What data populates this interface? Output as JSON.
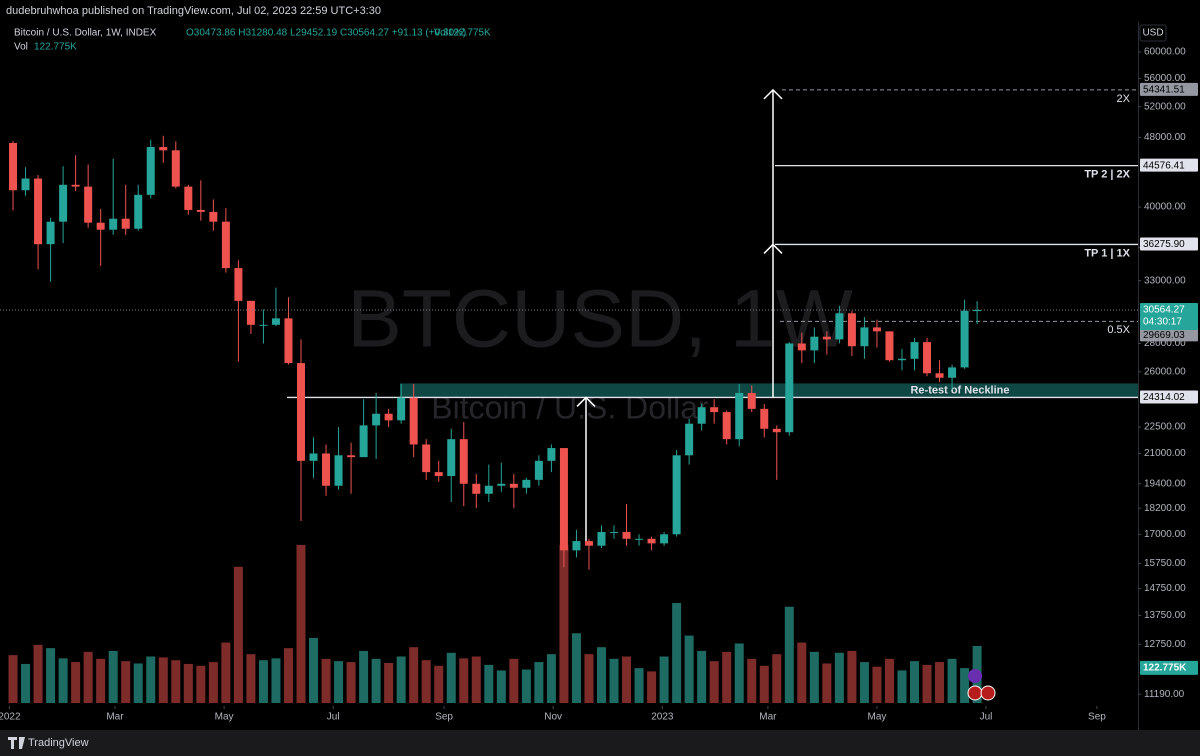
{
  "header": {
    "publisher": "dudebruhwhoa published on TradingView.com, Jul 02, 2023 22:59 UTC+3:30",
    "brand": "TradingView"
  },
  "chart_data": {
    "type": "candlestick",
    "title": "Bitcoin / U.S. Dollar, 1W, INDEX",
    "ohlc_text": "O30473.86 H31280.48 L29452.19 C30564.27 +91.13 (+0.30%)",
    "volume_text": "Vol122.775K",
    "watermark": "BTCUSD, 1W",
    "watermark_sub": "Bitcoin / U.S. Dollar",
    "currency": "USD",
    "countdown": "04:30:17",
    "log": true,
    "grid": false,
    "up_color": "#26a69a",
    "down_color": "#ef5350",
    "volume_up_color": "#1d6b63",
    "volume_down_color": "#7e2c2a",
    "categories": [
      null,
      null,
      null,
      null,
      null,
      null,
      null,
      null,
      null,
      null,
      null,
      null,
      null,
      null,
      null,
      null,
      null,
      null,
      null,
      null,
      null,
      null,
      null,
      null,
      null,
      null,
      null,
      null,
      null,
      null,
      null,
      null,
      null,
      null,
      null,
      null,
      null,
      null,
      null,
      null,
      null,
      null,
      null,
      null,
      null,
      null,
      null,
      null,
      null,
      null,
      null,
      null,
      null,
      null,
      null,
      null,
      null,
      null,
      null,
      null,
      null,
      null,
      null,
      null,
      null,
      null,
      null,
      null,
      null,
      null,
      null,
      null,
      null,
      null,
      null,
      null,
      null,
      null
    ],
    "open": [
      47300,
      41800,
      43100,
      36300,
      38500,
      42400,
      42200,
      38400,
      37700,
      38800,
      37800,
      41300,
      46800,
      46400,
      42200,
      39700,
      39500,
      38500,
      34100,
      31300,
      29400,
      29400,
      29900,
      26600,
      20600,
      21000,
      19300,
      20900,
      20800,
      22600,
      23300,
      22900,
      24300,
      21500,
      20000,
      19800,
      21800,
      19400,
      18900,
      19300,
      19400,
      19200,
      19600,
      20600,
      21300,
      16300,
      16700,
      16500,
      17100,
      17100,
      16800,
      16800,
      16600,
      17000,
      20900,
      22700,
      23700,
      23400,
      21800,
      24600,
      23600,
      22400,
      22200,
      28000,
      27500,
      28500,
      28300,
      30300,
      27800,
      29200,
      28900,
      26800,
      26900,
      28100,
      25900,
      25600,
      26300,
      30473.86
    ],
    "high": [
      47550,
      44400,
      43500,
      38900,
      44500,
      45800,
      44700,
      39800,
      45400,
      42400,
      42400,
      47700,
      48200,
      47500,
      42400,
      42900,
      40800,
      39900,
      34800,
      31300,
      30600,
      32400,
      31600,
      28300,
      21900,
      21500,
      22500,
      21600,
      24200,
      24600,
      23600,
      25200,
      25200,
      21800,
      20600,
      22400,
      22800,
      19900,
      20400,
      20500,
      19900,
      19700,
      20900,
      21500,
      21300,
      17200,
      16800,
      17400,
      17400,
      18400,
      17000,
      16900,
      17100,
      21200,
      23000,
      23900,
      24200,
      23500,
      25200,
      25100,
      23900,
      22600,
      28100,
      28800,
      29200,
      28900,
      30900,
      30500,
      30000,
      29800,
      28900,
      27600,
      28400,
      28400,
      26800,
      26500,
      31400,
      31280.48
    ],
    "low": [
      39650,
      41200,
      34000,
      32900,
      36400,
      41700,
      37900,
      34300,
      37200,
      37200,
      37600,
      40900,
      44900,
      42000,
      39200,
      38600,
      37600,
      33700,
      26700,
      28700,
      28000,
      29300,
      26500,
      17600,
      19700,
      18800,
      19100,
      18900,
      20800,
      20700,
      22500,
      22700,
      20800,
      19600,
      19500,
      18500,
      18300,
      18200,
      18500,
      19000,
      18200,
      18900,
      19300,
      20000,
      15600,
      16000,
      15500,
      16400,
      16800,
      16500,
      16500,
      16300,
      16500,
      16900,
      20400,
      22300,
      22700,
      21500,
      21400,
      23400,
      21900,
      19600,
      22000,
      26600,
      26600,
      27200,
      28000,
      27100,
      26900,
      27700,
      26700,
      26100,
      26100,
      25700,
      25300,
      24800,
      26200,
      29452.19
    ],
    "close": [
      41800,
      43100,
      36300,
      38500,
      42400,
      42200,
      38400,
      37700,
      38800,
      37800,
      41300,
      46800,
      46400,
      42200,
      39700,
      39500,
      38500,
      34100,
      31300,
      29400,
      29400,
      29900,
      26600,
      20600,
      21000,
      19300,
      20900,
      20800,
      22600,
      23300,
      22900,
      24300,
      21500,
      20000,
      19800,
      21800,
      19400,
      18900,
      19300,
      19400,
      19200,
      19600,
      20600,
      21300,
      16300,
      16700,
      16500,
      17100,
      17100,
      16800,
      16800,
      16600,
      17000,
      20900,
      22700,
      23700,
      23400,
      21800,
      24600,
      23600,
      22400,
      22200,
      28000,
      27500,
      28500,
      28300,
      30300,
      27800,
      29200,
      28900,
      26800,
      26900,
      28100,
      25900,
      25600,
      26300,
      30500,
      30564.27
    ],
    "volume": {
      "name": "Vol",
      "last_label": "122.775K",
      "values": [
        103,
        84,
        125,
        118,
        96,
        88,
        110,
        95,
        112,
        90,
        85,
        100,
        98,
        92,
        84,
        80,
        88,
        130,
        293,
        105,
        92,
        96,
        118,
        340,
        140,
        95,
        90,
        88,
        112,
        95,
        86,
        100,
        120,
        92,
        80,
        108,
        96,
        100,
        82,
        70,
        95,
        72,
        88,
        105,
        340,
        150,
        105,
        120,
        95,
        100,
        75,
        68,
        100,
        215,
        145,
        112,
        90,
        110,
        128,
        95,
        80,
        105,
        207,
        130,
        110,
        85,
        108,
        112,
        88,
        78,
        95,
        70,
        90,
        82,
        88,
        95,
        75,
        122.775
      ]
    },
    "xlim": [
      -1.04,
      89.85
    ],
    "xticks": [
      {
        "value": -0.29,
        "label": "2022"
      },
      {
        "value": 8.14,
        "label": "Mar"
      },
      {
        "value": 16.86,
        "label": "May"
      },
      {
        "value": 25.57,
        "label": "Jul"
      },
      {
        "value": 34.43,
        "label": "Sep"
      },
      {
        "value": 43.14,
        "label": "Nov"
      },
      {
        "value": 51.86,
        "label": "2023"
      },
      {
        "value": 60.29,
        "label": "Mar"
      },
      {
        "value": 69,
        "label": "May"
      },
      {
        "value": 77.71,
        "label": "Jul"
      },
      {
        "value": 86.57,
        "label": "Sep"
      }
    ],
    "ylim": [
      10850,
      64900
    ],
    "yticks": [
      {
        "value": 60000,
        "label": "60000.00"
      },
      {
        "value": 56000,
        "label": "56000.00"
      },
      {
        "value": 52000,
        "label": "52000.00"
      },
      {
        "value": 48000,
        "label": "48000.00"
      },
      {
        "value": 40000,
        "label": "40000.00"
      },
      {
        "value": 36000,
        "label": "36000.00"
      },
      {
        "value": 33000,
        "label": "33000.00"
      },
      {
        "value": 28000,
        "label": "28000.00"
      },
      {
        "value": 26000,
        "label": "26000.00"
      },
      {
        "value": 22500,
        "label": "22500.00"
      },
      {
        "value": 21000,
        "label": "21000.00"
      },
      {
        "value": 19400,
        "label": "19400.00"
      },
      {
        "value": 18200,
        "label": "18200.00"
      },
      {
        "value": 17000,
        "label": "17000.00"
      },
      {
        "value": 15750,
        "label": "15750.00"
      },
      {
        "value": 14750,
        "label": "14750.00"
      },
      {
        "value": 13750,
        "label": "13750.00"
      },
      {
        "value": 12750,
        "label": "12750.00"
      },
      {
        "value": 11190,
        "label": "11190.00"
      }
    ],
    "levels": [
      {
        "price": 54341.51,
        "text": "2X",
        "dashed": true
      },
      {
        "price": 44576.41,
        "text": "TP 2 | 2X",
        "dashed": false
      },
      {
        "price": {
          "value": 36275.9,
          "label": "36275.90"
        },
        "text": "TP 1 | 1X",
        "dashed": false
      },
      {
        "price": 29669.03,
        "text": "0.5X",
        "dashed": true
      },
      {
        "price": 24314.02,
        "text": "Re-test of Neckline",
        "dashed": false
      }
    ]
  }
}
